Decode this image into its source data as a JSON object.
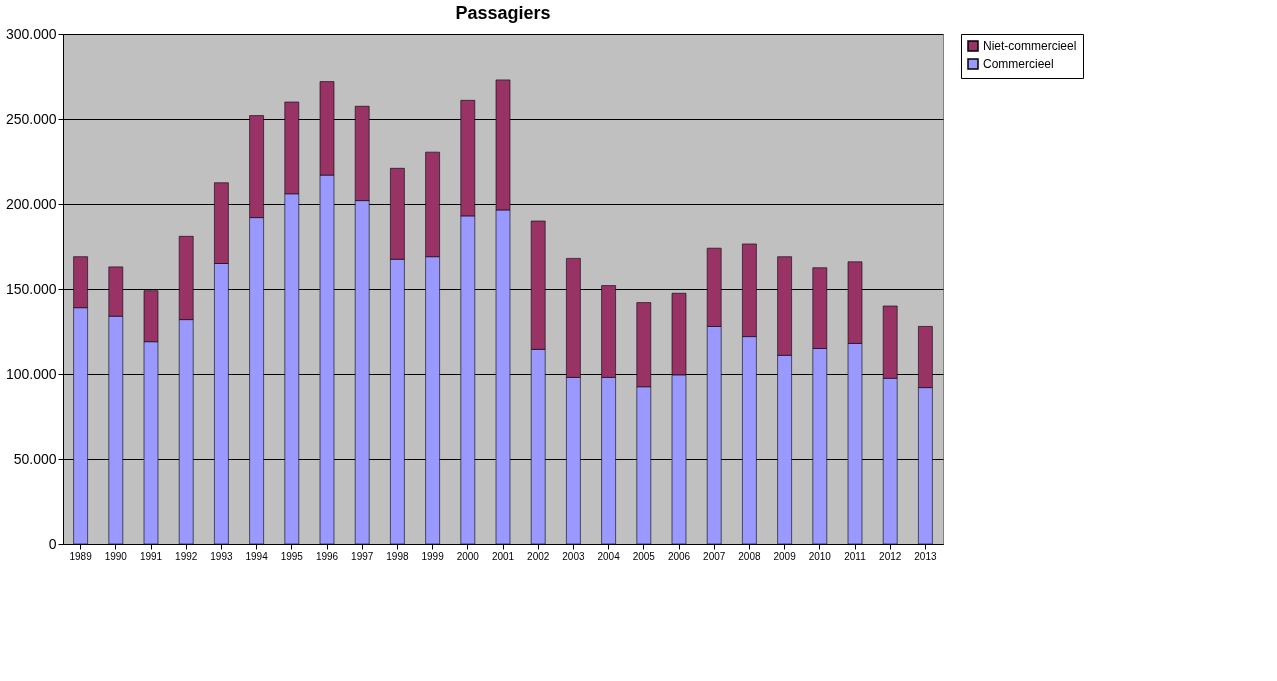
{
  "chart_data": {
    "type": "bar",
    "title": "Passagiers",
    "stacked": true,
    "categories": [
      "1989",
      "1990",
      "1991",
      "1992",
      "1993",
      "1994",
      "1995",
      "1996",
      "1997",
      "1998",
      "1999",
      "2000",
      "2001",
      "2002",
      "2003",
      "2004",
      "2005",
      "2006",
      "2007",
      "2008",
      "2009",
      "2010",
      "2011",
      "2012",
      "2013"
    ],
    "series": [
      {
        "name": "Commercieel",
        "color": "#9999ff",
        "values": [
          139000,
          134000,
          119000,
          132000,
          165000,
          192000,
          206000,
          217000,
          202000,
          167500,
          169000,
          193000,
          196500,
          114500,
          98000,
          98000,
          92500,
          99500,
          128000,
          122000,
          111000,
          115000,
          118000,
          97500,
          92000
        ]
      },
      {
        "name": "Niet-commercieel",
        "color": "#993366",
        "values": [
          30000,
          29000,
          30000,
          49000,
          47500,
          60000,
          54000,
          55000,
          55500,
          53500,
          61500,
          68000,
          76500,
          75500,
          70000,
          54000,
          49500,
          48000,
          46000,
          54500,
          58000,
          47500,
          48000,
          42500,
          36000
        ]
      }
    ],
    "ylim": [
      0,
      300000
    ],
    "yticks": [
      {
        "value": 0,
        "label": "0"
      },
      {
        "value": 50000,
        "label": "50.000"
      },
      {
        "value": 100000,
        "label": "100.000"
      },
      {
        "value": 150000,
        "label": "150.000"
      },
      {
        "value": 200000,
        "label": "200.000"
      },
      {
        "value": 250000,
        "label": "250.000"
      },
      {
        "value": 300000,
        "label": "300.000"
      }
    ],
    "grid": "y",
    "legend": "right"
  }
}
